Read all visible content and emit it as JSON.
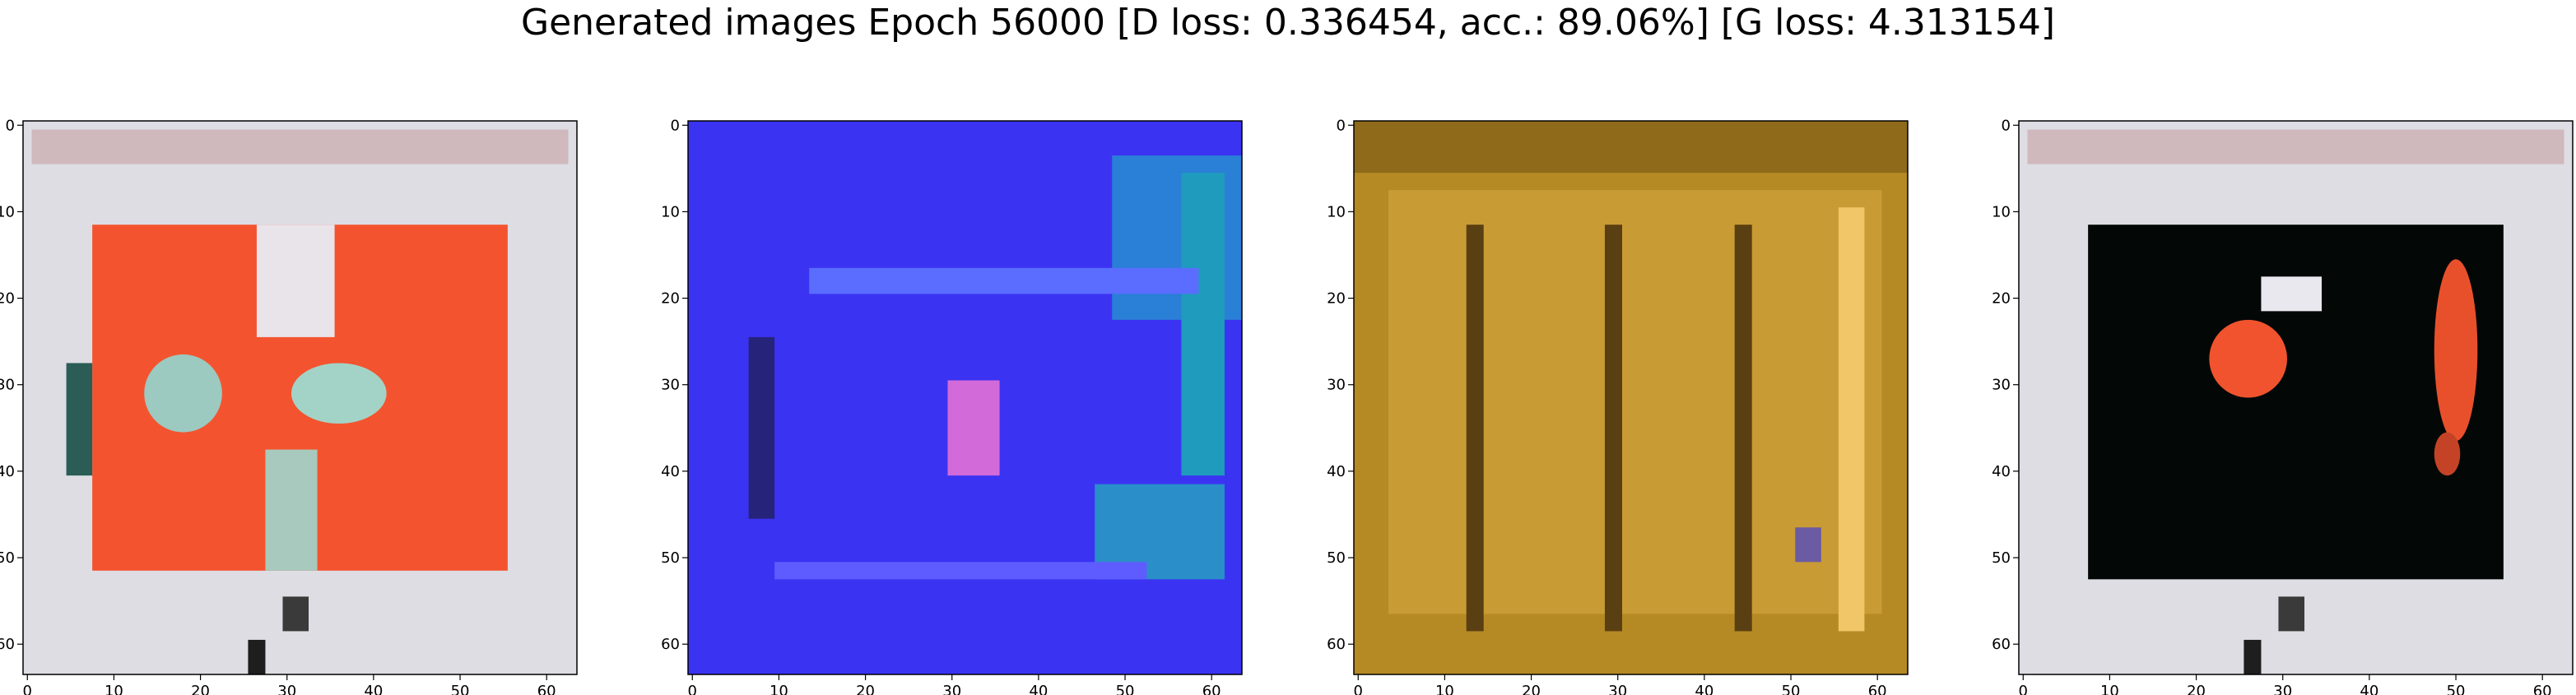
{
  "title": "Generated images Epoch 56000 [D loss: 0.336454, acc.: 89.06%] [G loss: 4.313154]",
  "chart_data": [
    {
      "type": "heatmap",
      "xlim": [
        0,
        63
      ],
      "ylim": [
        63,
        0
      ],
      "x_ticks": [
        "0",
        "10",
        "20",
        "30",
        "40",
        "50",
        "60"
      ],
      "y_ticks": [
        "0",
        "10",
        "20",
        "30",
        "40",
        "50",
        "60"
      ],
      "image": {
        "background": "#dedde4",
        "regions": [
          {
            "kind": "rect",
            "x0": 1,
            "x1": 62,
            "y0": 1,
            "y1": 4,
            "color": "#cfb9bd"
          },
          {
            "kind": "rect",
            "x0": 8,
            "x1": 55,
            "y0": 12,
            "y1": 51,
            "color": "#f3542f"
          },
          {
            "kind": "rect",
            "x0": 27,
            "x1": 35,
            "y0": 12,
            "y1": 24,
            "color": "#e9e4ea"
          },
          {
            "kind": "ellipse",
            "cx": 18,
            "cy": 31,
            "rx": 4,
            "ry": 4,
            "color": "#9cc9c0"
          },
          {
            "kind": "ellipse",
            "cx": 36,
            "cy": 31,
            "rx": 5,
            "ry": 3,
            "color": "#a3d3c6"
          },
          {
            "kind": "rect",
            "x0": 28,
            "x1": 33,
            "y0": 38,
            "y1": 51,
            "color": "#a8c9bd"
          },
          {
            "kind": "rect",
            "x0": 5,
            "x1": 7,
            "y0": 28,
            "y1": 40,
            "color": "#2b5c56"
          },
          {
            "kind": "rect",
            "x0": 30,
            "x1": 32,
            "y0": 55,
            "y1": 58,
            "color": "#3a3a3a"
          },
          {
            "kind": "rect",
            "x0": 26,
            "x1": 27,
            "y0": 60,
            "y1": 63,
            "color": "#1e1e1e"
          }
        ]
      }
    },
    {
      "type": "heatmap",
      "xlim": [
        0,
        63
      ],
      "ylim": [
        63,
        0
      ],
      "x_ticks": [
        "0",
        "10",
        "20",
        "30",
        "40",
        "50",
        "60"
      ],
      "y_ticks": [
        "0",
        "10",
        "20",
        "30",
        "40",
        "50",
        "60"
      ],
      "image": {
        "background": "#3b33f2",
        "regions": [
          {
            "kind": "rect",
            "x0": 49,
            "x1": 63,
            "y0": 4,
            "y1": 22,
            "color": "#2a7fd6"
          },
          {
            "kind": "rect",
            "x0": 57,
            "x1": 61,
            "y0": 6,
            "y1": 40,
            "color": "#1f9bbd"
          },
          {
            "kind": "rect",
            "x0": 47,
            "x1": 61,
            "y0": 42,
            "y1": 52,
            "color": "#2a8fc9"
          },
          {
            "kind": "rect",
            "x0": 14,
            "x1": 58,
            "y0": 17,
            "y1": 19,
            "color": "#5a6dff"
          },
          {
            "kind": "rect",
            "x0": 30,
            "x1": 35,
            "y0": 30,
            "y1": 40,
            "color": "#d36ad9"
          },
          {
            "kind": "rect",
            "x0": 7,
            "x1": 9,
            "y0": 25,
            "y1": 45,
            "color": "#26237a"
          },
          {
            "kind": "rect",
            "x0": 10,
            "x1": 52,
            "y0": 51,
            "y1": 52,
            "color": "#5f5cff"
          }
        ]
      }
    },
    {
      "type": "heatmap",
      "xlim": [
        0,
        63
      ],
      "ylim": [
        63,
        0
      ],
      "x_ticks": [
        "0",
        "10",
        "20",
        "30",
        "40",
        "50",
        "60"
      ],
      "y_ticks": [
        "0",
        "10",
        "20",
        "30",
        "40",
        "50",
        "60"
      ],
      "image": {
        "background": "#b58a25",
        "regions": [
          {
            "kind": "rect",
            "x0": 0,
            "x1": 63,
            "y0": 0,
            "y1": 5,
            "color": "#8f6a1a"
          },
          {
            "kind": "rect",
            "x0": 4,
            "x1": 60,
            "y0": 8,
            "y1": 56,
            "color": "#c99b35"
          },
          {
            "kind": "rect",
            "x0": 56,
            "x1": 58,
            "y0": 10,
            "y1": 58,
            "color": "#f1c668"
          },
          {
            "kind": "rect",
            "x0": 51,
            "x1": 53,
            "y0": 47,
            "y1": 50,
            "color": "#6b5ba3"
          },
          {
            "kind": "rect",
            "x0": 13,
            "x1": 14,
            "y0": 12,
            "y1": 58,
            "color": "#5a3f12"
          },
          {
            "kind": "rect",
            "x0": 29,
            "x1": 30,
            "y0": 12,
            "y1": 58,
            "color": "#5a3f12"
          },
          {
            "kind": "rect",
            "x0": 44,
            "x1": 45,
            "y0": 12,
            "y1": 58,
            "color": "#5a3f12"
          }
        ]
      }
    },
    {
      "type": "heatmap",
      "xlim": [
        0,
        63
      ],
      "ylim": [
        63,
        0
      ],
      "x_ticks": [
        "0",
        "10",
        "20",
        "30",
        "40",
        "50",
        "60"
      ],
      "y_ticks": [
        "0",
        "10",
        "20",
        "30",
        "40",
        "50",
        "60"
      ],
      "image": {
        "background": "#dedde4",
        "regions": [
          {
            "kind": "rect",
            "x0": 1,
            "x1": 62,
            "y0": 1,
            "y1": 4,
            "color": "#cfb9bd"
          },
          {
            "kind": "rect",
            "x0": 8,
            "x1": 55,
            "y0": 12,
            "y1": 52,
            "color": "#030807"
          },
          {
            "kind": "rect",
            "x0": 28,
            "x1": 34,
            "y0": 18,
            "y1": 21,
            "color": "#e9e8ee"
          },
          {
            "kind": "ellipse",
            "cx": 26,
            "cy": 27,
            "rx": 4,
            "ry": 4,
            "color": "#f0532e"
          },
          {
            "kind": "ellipse",
            "cx": 50,
            "cy": 26,
            "rx": 2,
            "ry": 10,
            "color": "#e8502c"
          },
          {
            "kind": "ellipse",
            "cx": 49,
            "cy": 38,
            "rx": 1,
            "ry": 2,
            "color": "#c44326"
          },
          {
            "kind": "rect",
            "x0": 30,
            "x1": 32,
            "y0": 55,
            "y1": 58,
            "color": "#3a3a3a"
          },
          {
            "kind": "rect",
            "x0": 26,
            "x1": 27,
            "y0": 60,
            "y1": 63,
            "color": "#1e1e1e"
          }
        ]
      }
    }
  ]
}
